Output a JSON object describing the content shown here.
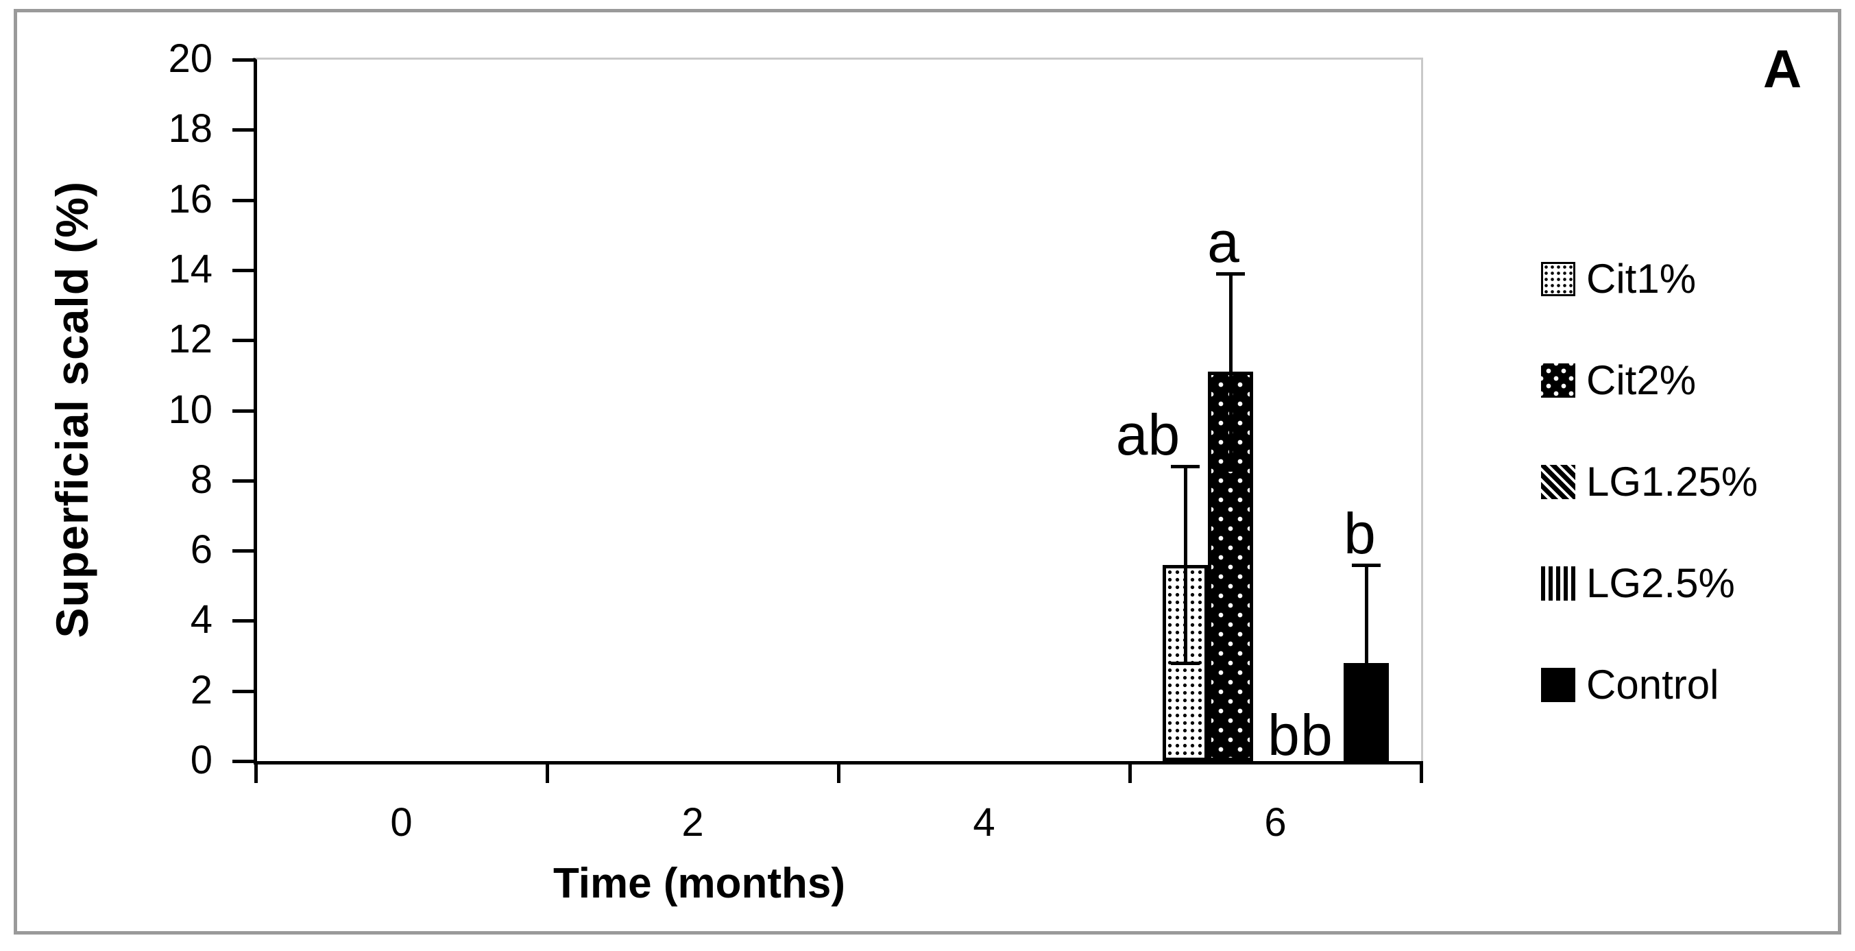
{
  "figure": {
    "panel_label": "A",
    "colors": {
      "foreground": "#000000",
      "background": "#ffffff",
      "panel_border": "#9a9a9a",
      "plot_border": "#c9c9c9"
    }
  },
  "chart_data": {
    "type": "bar",
    "title": "",
    "xlabel": "Time (months)",
    "ylabel": "Superficial scald (%)",
    "categories": [
      "0",
      "2",
      "4",
      "6"
    ],
    "ylim": [
      0,
      20
    ],
    "y_tick_step": 2,
    "grid": false,
    "legend_position": "right",
    "series": [
      {
        "name": "Cit1%",
        "pattern": "dot-light",
        "values": [
          0,
          0,
          0,
          5.6
        ],
        "errors": [
          0,
          0,
          0,
          2.8
        ],
        "letters": [
          "",
          "",
          "",
          "ab"
        ]
      },
      {
        "name": "Cit2%",
        "pattern": "dot-dark",
        "values": [
          0,
          0,
          0,
          11.1
        ],
        "errors": [
          0,
          0,
          0,
          2.8
        ],
        "letters": [
          "",
          "",
          "",
          "a"
        ]
      },
      {
        "name": "LG1.25%",
        "pattern": "diagonal-hatch",
        "values": [
          0,
          0,
          0,
          0
        ],
        "errors": [
          0,
          0,
          0,
          0
        ],
        "letters": [
          "",
          "",
          "",
          "b"
        ]
      },
      {
        "name": "LG2.5%",
        "pattern": "vertical-hatch",
        "values": [
          0,
          0,
          0,
          0
        ],
        "errors": [
          0,
          0,
          0,
          0
        ],
        "letters": [
          "",
          "",
          "",
          "b"
        ]
      },
      {
        "name": "Control",
        "pattern": "solid",
        "values": [
          0,
          0,
          0,
          2.8
        ],
        "errors": [
          0,
          0,
          0,
          2.8
        ],
        "letters": [
          "",
          "",
          "",
          "b"
        ]
      }
    ]
  }
}
